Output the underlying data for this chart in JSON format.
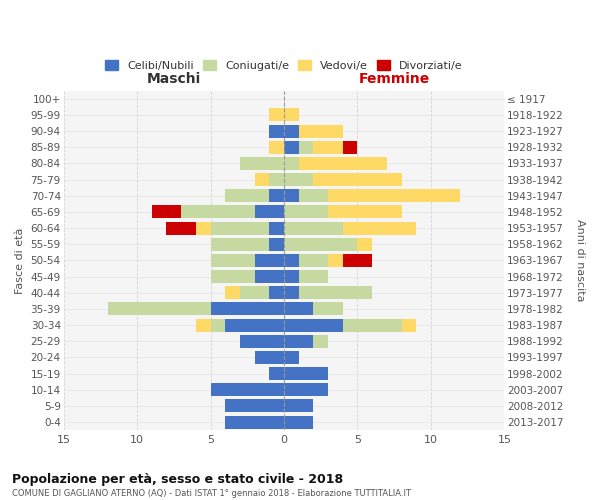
{
  "age_groups": [
    "0-4",
    "5-9",
    "10-14",
    "15-19",
    "20-24",
    "25-29",
    "30-34",
    "35-39",
    "40-44",
    "45-49",
    "50-54",
    "55-59",
    "60-64",
    "65-69",
    "70-74",
    "75-79",
    "80-84",
    "85-89",
    "90-94",
    "95-99",
    "100+"
  ],
  "birth_years": [
    "2013-2017",
    "2008-2012",
    "2003-2007",
    "1998-2002",
    "1993-1997",
    "1988-1992",
    "1983-1987",
    "1978-1982",
    "1973-1977",
    "1968-1972",
    "1963-1967",
    "1958-1962",
    "1953-1957",
    "1948-1952",
    "1943-1947",
    "1938-1942",
    "1933-1937",
    "1928-1932",
    "1923-1927",
    "1918-1922",
    "≤ 1917"
  ],
  "male": {
    "celibe": [
      4,
      4,
      5,
      1,
      2,
      3,
      4,
      5,
      1,
      2,
      2,
      1,
      1,
      2,
      1,
      0,
      0,
      0,
      1,
      0,
      0
    ],
    "coniugato": [
      0,
      0,
      0,
      0,
      0,
      0,
      1,
      7,
      2,
      3,
      3,
      4,
      4,
      5,
      3,
      1,
      3,
      0,
      0,
      0,
      0
    ],
    "vedovo": [
      0,
      0,
      0,
      0,
      0,
      0,
      1,
      0,
      1,
      0,
      0,
      0,
      1,
      0,
      0,
      1,
      0,
      1,
      0,
      1,
      0
    ],
    "divorziato": [
      0,
      0,
      0,
      0,
      0,
      0,
      0,
      0,
      0,
      0,
      0,
      0,
      2,
      2,
      0,
      0,
      0,
      0,
      0,
      0,
      0
    ]
  },
  "female": {
    "nubile": [
      2,
      2,
      3,
      3,
      1,
      2,
      4,
      2,
      1,
      1,
      1,
      0,
      0,
      0,
      1,
      0,
      0,
      1,
      1,
      0,
      0
    ],
    "coniugata": [
      0,
      0,
      0,
      0,
      0,
      1,
      4,
      2,
      5,
      2,
      2,
      5,
      4,
      3,
      2,
      2,
      1,
      1,
      0,
      0,
      0
    ],
    "vedova": [
      0,
      0,
      0,
      0,
      0,
      0,
      1,
      0,
      0,
      0,
      1,
      1,
      5,
      5,
      9,
      6,
      6,
      2,
      3,
      1,
      0
    ],
    "divorziata": [
      0,
      0,
      0,
      0,
      0,
      0,
      0,
      0,
      0,
      0,
      2,
      0,
      0,
      0,
      0,
      0,
      0,
      1,
      0,
      0,
      0
    ]
  },
  "colors": {
    "celibe": "#4472C4",
    "coniugato": "#c5d9a0",
    "vedovo": "#FFD966",
    "divorziato": "#CC0000"
  },
  "title": "Popolazione per età, sesso e stato civile - 2018",
  "subtitle": "COMUNE DI GAGLIANO ATERNO (AQ) - Dati ISTAT 1° gennaio 2018 - Elaborazione TUTTITALIA.IT",
  "xlabel_left": "Maschi",
  "xlabel_right": "Femmine",
  "ylabel_left": "Fasce di età",
  "ylabel_right": "Anni di nascita",
  "xlim": 15,
  "background_color": "#f5f5f5",
  "grid_color": "#cccccc",
  "legend_labels": [
    "Celibi/Nubili",
    "Coniugati/e",
    "Vedovi/e",
    "Divorziati/e"
  ]
}
